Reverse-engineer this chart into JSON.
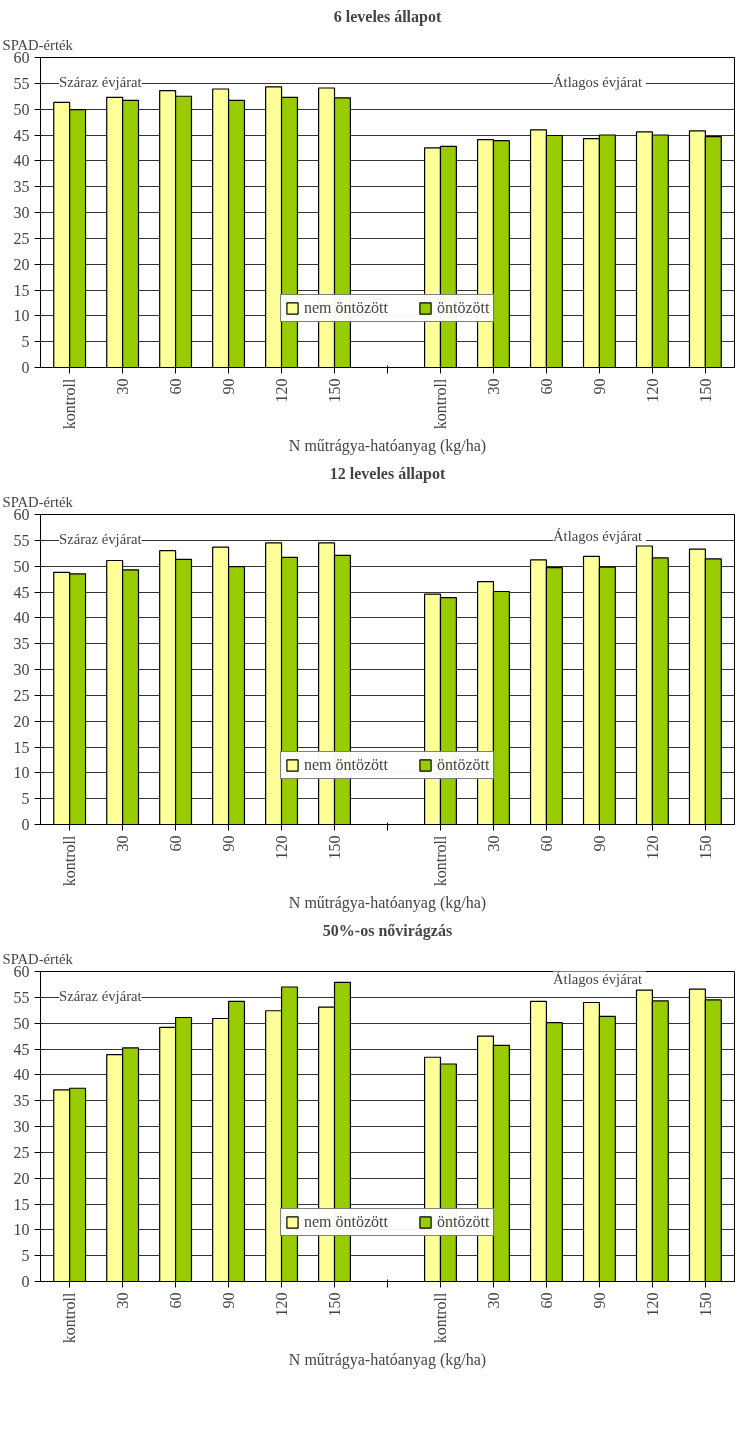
{
  "chart_data": [
    {
      "type": "bar",
      "title": "6 leveles állapot",
      "ylabel": "SPAD-érték",
      "xlabel": "N műtrágya-hatóanyag (kg/ha)",
      "categories": [
        "kontroll",
        "30",
        "60",
        "90",
        "120",
        "150",
        null,
        "kontroll",
        "30",
        "60",
        "90",
        "120",
        "150"
      ],
      "series": [
        {
          "name": "nem öntözött",
          "color": "#ffff99",
          "values": [
            51.3,
            52.3,
            53.6,
            53.9,
            54.3,
            54.1,
            null,
            42.5,
            44.1,
            46.0,
            44.3,
            45.6,
            45.8
          ]
        },
        {
          "name": "öntözött",
          "color": "#99cc00",
          "values": [
            49.9,
            51.7,
            52.5,
            51.7,
            52.3,
            52.2,
            null,
            42.8,
            43.9,
            44.9,
            45.0,
            45.0,
            44.7
          ]
        }
      ],
      "ylim": [
        0,
        60
      ],
      "yticks": [
        0,
        5,
        10,
        15,
        20,
        25,
        30,
        35,
        40,
        45,
        50,
        55,
        60
      ],
      "grid": "y",
      "legend": "bottom",
      "annotations": [
        "Száraz évjárat",
        "Átlagos  évjárat"
      ]
    },
    {
      "type": "bar",
      "title": "12 leveles állapot",
      "ylabel": "SPAD-érték",
      "xlabel": "N műtrágya-hatóanyag (kg/ha)",
      "categories": [
        "kontroll",
        "30",
        "60",
        "90",
        "120",
        "150",
        null,
        "kontroll",
        "30",
        "60",
        "90",
        "120",
        "150"
      ],
      "series": [
        {
          "name": "nem öntözött",
          "color": "#ffff99",
          "values": [
            48.8,
            51.1,
            53.0,
            53.7,
            54.5,
            54.5,
            null,
            44.6,
            47.0,
            51.2,
            51.9,
            53.9,
            53.3
          ]
        },
        {
          "name": "öntözött",
          "color": "#99cc00",
          "values": [
            48.5,
            49.3,
            51.3,
            49.9,
            51.7,
            52.1,
            null,
            43.9,
            45.1,
            49.7,
            49.8,
            51.6,
            51.4
          ]
        }
      ],
      "ylim": [
        0,
        60
      ],
      "yticks": [
        0,
        5,
        10,
        15,
        20,
        25,
        30,
        35,
        40,
        45,
        50,
        55,
        60
      ],
      "grid": "y",
      "legend": "bottom",
      "annotations": [
        "Száraz évjárat",
        "Átlagos  évjárat"
      ]
    },
    {
      "type": "bar",
      "title": "50%-os nővirágzás",
      "ylabel": "SPAD-érték",
      "xlabel": "N műtrágya-hatóanyag (kg/ha)",
      "categories": [
        "kontroll",
        "30",
        "60",
        "90",
        "120",
        "150",
        null,
        "kontroll",
        "30",
        "60",
        "90",
        "120",
        "150"
      ],
      "series": [
        {
          "name": "nem öntözött",
          "color": "#ffff99",
          "values": [
            37.1,
            43.9,
            49.2,
            50.9,
            52.4,
            53.1,
            null,
            43.4,
            47.5,
            54.2,
            54.0,
            56.4,
            56.6
          ]
        },
        {
          "name": "öntözött",
          "color": "#99cc00",
          "values": [
            37.4,
            45.2,
            51.1,
            54.2,
            57.0,
            57.9,
            null,
            42.1,
            45.7,
            50.1,
            51.3,
            54.3,
            54.5
          ]
        }
      ],
      "ylim": [
        0,
        60
      ],
      "yticks": [
        0,
        5,
        10,
        15,
        20,
        25,
        30,
        35,
        40,
        45,
        50,
        55,
        60
      ],
      "grid": "y",
      "legend": "bottom",
      "annotations": [
        "Száraz évjárat",
        "Átlagos  évjárat"
      ]
    }
  ]
}
